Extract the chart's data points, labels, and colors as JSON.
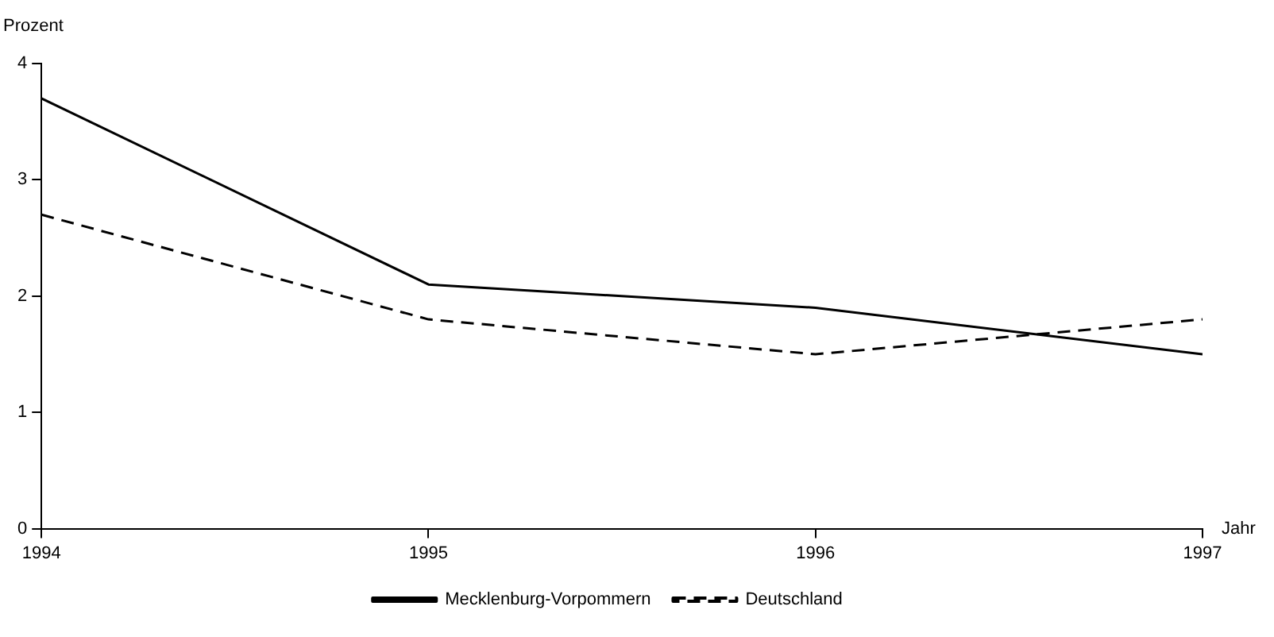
{
  "chart_data": {
    "type": "line",
    "xlabel": "Jahr",
    "ylabel": "Prozent",
    "x": [
      1994,
      1995,
      1996,
      1997
    ],
    "xlim": [
      1994,
      1997
    ],
    "xticks": [
      1994,
      1995,
      1996,
      1997
    ],
    "ylim": [
      0,
      4
    ],
    "yticks": [
      0,
      1,
      2,
      3,
      4
    ],
    "grid": false,
    "legend": "bottom",
    "marker": "none",
    "series": [
      {
        "name": "Mecklenburg-Vorpommern",
        "color": "#000000",
        "values": [
          3.7,
          2.1,
          1.9,
          1.5
        ],
        "line_style": "solid"
      },
      {
        "name": "Deutschland",
        "color": "#000000",
        "values": [
          2.7,
          1.8,
          1.5,
          1.8
        ],
        "line_style": "dashed"
      }
    ]
  }
}
